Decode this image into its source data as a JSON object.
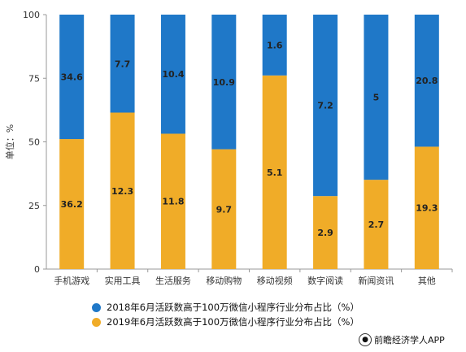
{
  "chart_data": {
    "type": "bar",
    "stacked": true,
    "categories": [
      "手机游戏",
      "实用工具",
      "生活服务",
      "移动购物",
      "移动视频",
      "数字阅读",
      "新闻资讯",
      "其他"
    ],
    "series": [
      {
        "name": "2018年6月活跃数高于100万微信小程序行业分布占比（%）",
        "color": "#1f78c8",
        "labels": [
          "34.6",
          "7.7",
          "10.4",
          "10.9",
          "1.6",
          "7.2",
          "5",
          "20.8"
        ]
      },
      {
        "name": "2019年6月活跃数高于100万微信小程序行业分布占比（%）",
        "color": "#f0ac28",
        "labels": [
          "36.2",
          "12.3",
          "11.8",
          "9.7",
          "5.1",
          "2.9",
          "2.7",
          "19.3"
        ]
      }
    ],
    "share_2019_of_100": [
      51.1,
      61.5,
      53.2,
      47.1,
      76.1,
      28.7,
      35.1,
      48.1
    ],
    "share_2018_of_100": [
      48.9,
      38.5,
      46.8,
      52.9,
      23.9,
      71.3,
      64.9,
      51.9
    ],
    "ylabel": "单位：%",
    "yticks": [
      0,
      25,
      50,
      75,
      100
    ],
    "ylim": [
      0,
      100
    ],
    "grid": false,
    "legend_position": "bottom"
  },
  "source": "前瞻经济学人APP",
  "source_icon": "circle-logo-icon"
}
